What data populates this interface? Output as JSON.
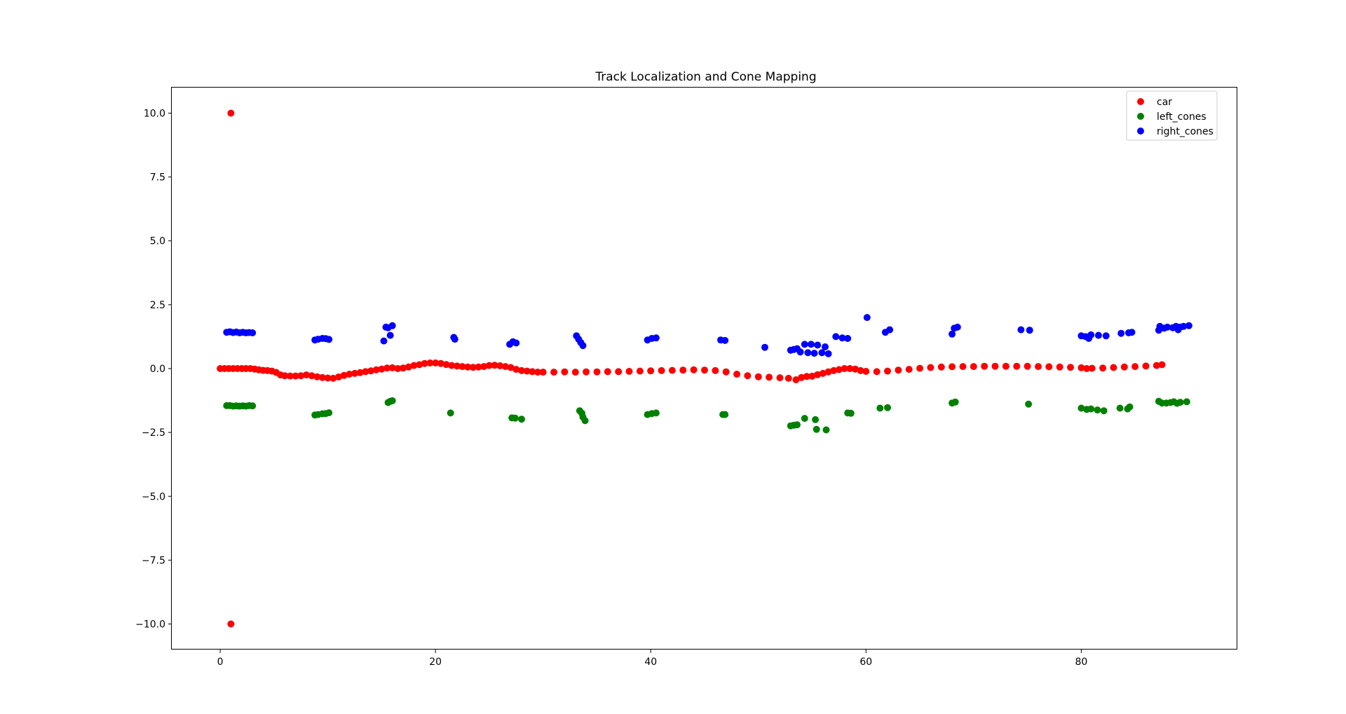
{
  "chart_data": {
    "type": "scatter",
    "title": "Track Localization and Cone Mapping",
    "xlabel": "",
    "ylabel": "",
    "xlim": [
      -4.5,
      94.5
    ],
    "ylim": [
      -11,
      11
    ],
    "x_ticks": [
      0,
      20,
      40,
      60,
      80
    ],
    "x_tick_labels": [
      "0",
      "20",
      "40",
      "60",
      "80"
    ],
    "y_ticks": [
      10,
      7.5,
      5,
      2.5,
      0,
      -2.5,
      -5,
      -7.5,
      -10
    ],
    "y_tick_labels": [
      "10.0",
      "7.5",
      "5.0",
      "2.5",
      "0.0",
      "−2.5",
      "−5.0",
      "−7.5",
      "−10.0"
    ],
    "grid": false,
    "legend_position": "top-right",
    "series": [
      {
        "name": "car",
        "color": "#ff0000",
        "points": [
          [
            1.0,
            10.0
          ],
          [
            1.0,
            -10.0
          ],
          [
            0.0,
            0.0
          ],
          [
            0.4,
            0.0
          ],
          [
            0.8,
            0.0
          ],
          [
            1.2,
            0.0
          ],
          [
            1.6,
            0.0
          ],
          [
            2.0,
            0.0
          ],
          [
            2.4,
            0.0
          ],
          [
            2.8,
            0.0
          ],
          [
            3.2,
            -0.02
          ],
          [
            3.6,
            -0.05
          ],
          [
            4.0,
            -0.07
          ],
          [
            4.4,
            -0.08
          ],
          [
            4.8,
            -0.1
          ],
          [
            5.2,
            -0.15
          ],
          [
            5.6,
            -0.25
          ],
          [
            6.0,
            -0.28
          ],
          [
            6.5,
            -0.29
          ],
          [
            7.0,
            -0.29
          ],
          [
            7.5,
            -0.28
          ],
          [
            8.0,
            -0.25
          ],
          [
            8.5,
            -0.28
          ],
          [
            9.0,
            -0.32
          ],
          [
            9.5,
            -0.35
          ],
          [
            10.0,
            -0.37
          ],
          [
            10.5,
            -0.38
          ],
          [
            11.0,
            -0.33
          ],
          [
            11.5,
            -0.27
          ],
          [
            12.0,
            -0.22
          ],
          [
            12.5,
            -0.19
          ],
          [
            13.0,
            -0.16
          ],
          [
            13.5,
            -0.12
          ],
          [
            14.0,
            -0.09
          ],
          [
            14.5,
            -0.05
          ],
          [
            15.0,
            -0.02
          ],
          [
            15.5,
            0.02
          ],
          [
            16.0,
            0.03
          ],
          [
            16.5,
            0.0
          ],
          [
            17.0,
            0.02
          ],
          [
            17.5,
            0.06
          ],
          [
            18.0,
            0.12
          ],
          [
            18.5,
            0.15
          ],
          [
            19.0,
            0.2
          ],
          [
            19.5,
            0.22
          ],
          [
            20.0,
            0.22
          ],
          [
            20.5,
            0.2
          ],
          [
            21.0,
            0.16
          ],
          [
            21.5,
            0.12
          ],
          [
            22.0,
            0.1
          ],
          [
            22.5,
            0.08
          ],
          [
            23.0,
            0.06
          ],
          [
            23.5,
            0.05
          ],
          [
            24.0,
            0.06
          ],
          [
            24.5,
            0.08
          ],
          [
            25.0,
            0.12
          ],
          [
            25.5,
            0.13
          ],
          [
            26.0,
            0.11
          ],
          [
            26.5,
            0.08
          ],
          [
            27.0,
            0.04
          ],
          [
            27.5,
            -0.03
          ],
          [
            28.0,
            -0.08
          ],
          [
            28.5,
            -0.1
          ],
          [
            29.0,
            -0.12
          ],
          [
            29.5,
            -0.14
          ],
          [
            30.0,
            -0.14
          ],
          [
            31.0,
            -0.14
          ],
          [
            32.0,
            -0.13
          ],
          [
            33.0,
            -0.14
          ],
          [
            34.0,
            -0.13
          ],
          [
            35.0,
            -0.13
          ],
          [
            36.0,
            -0.12
          ],
          [
            37.0,
            -0.12
          ],
          [
            38.0,
            -0.11
          ],
          [
            39.0,
            -0.1
          ],
          [
            40.0,
            -0.09
          ],
          [
            41.0,
            -0.08
          ],
          [
            42.0,
            -0.07
          ],
          [
            43.0,
            -0.06
          ],
          [
            44.0,
            -0.05
          ],
          [
            45.0,
            -0.06
          ],
          [
            46.0,
            -0.08
          ],
          [
            47.0,
            -0.13
          ],
          [
            48.0,
            -0.22
          ],
          [
            49.0,
            -0.28
          ],
          [
            50.0,
            -0.32
          ],
          [
            51.0,
            -0.34
          ],
          [
            52.0,
            -0.36
          ],
          [
            52.8,
            -0.38
          ],
          [
            53.5,
            -0.44
          ],
          [
            54.0,
            -0.35
          ],
          [
            54.5,
            -0.31
          ],
          [
            55.0,
            -0.3
          ],
          [
            55.5,
            -0.24
          ],
          [
            56.0,
            -0.19
          ],
          [
            56.5,
            -0.13
          ],
          [
            57.0,
            -0.08
          ],
          [
            57.5,
            -0.04
          ],
          [
            58.0,
            0.0
          ],
          [
            58.5,
            0.0
          ],
          [
            59.0,
            -0.02
          ],
          [
            59.5,
            -0.08
          ],
          [
            60.0,
            -0.11
          ],
          [
            61.0,
            -0.12
          ],
          [
            62.0,
            -0.1
          ],
          [
            63.0,
            -0.06
          ],
          [
            64.0,
            -0.03
          ],
          [
            65.0,
            0.01
          ],
          [
            66.0,
            0.04
          ],
          [
            67.0,
            0.06
          ],
          [
            68.0,
            0.07
          ],
          [
            69.0,
            0.08
          ],
          [
            70.0,
            0.08
          ],
          [
            71.0,
            0.09
          ],
          [
            72.0,
            0.09
          ],
          [
            73.0,
            0.09
          ],
          [
            74.0,
            0.09
          ],
          [
            75.0,
            0.09
          ],
          [
            76.0,
            0.08
          ],
          [
            77.0,
            0.07
          ],
          [
            78.0,
            0.06
          ],
          [
            79.0,
            0.05
          ],
          [
            80.0,
            0.03
          ],
          [
            80.5,
            0.0
          ],
          [
            81.0,
            0.01
          ],
          [
            82.0,
            0.02
          ],
          [
            83.0,
            0.04
          ],
          [
            84.0,
            0.06
          ],
          [
            85.0,
            0.08
          ],
          [
            86.0,
            0.1
          ],
          [
            87.0,
            0.12
          ],
          [
            87.5,
            0.15
          ]
        ]
      },
      {
        "name": "left_cones",
        "color": "#008000",
        "points": [
          [
            0.6,
            -1.45
          ],
          [
            0.9,
            -1.45
          ],
          [
            1.2,
            -1.47
          ],
          [
            1.5,
            -1.46
          ],
          [
            1.8,
            -1.47
          ],
          [
            2.1,
            -1.46
          ],
          [
            2.4,
            -1.47
          ],
          [
            2.7,
            -1.45
          ],
          [
            3.0,
            -1.46
          ],
          [
            8.8,
            -1.82
          ],
          [
            9.1,
            -1.8
          ],
          [
            9.5,
            -1.77
          ],
          [
            9.8,
            -1.76
          ],
          [
            10.1,
            -1.73
          ],
          [
            15.6,
            -1.33
          ],
          [
            15.8,
            -1.28
          ],
          [
            16.0,
            -1.26
          ],
          [
            21.4,
            -1.74
          ],
          [
            27.1,
            -1.93
          ],
          [
            27.4,
            -1.94
          ],
          [
            28.0,
            -1.98
          ],
          [
            33.4,
            -1.65
          ],
          [
            33.6,
            -1.75
          ],
          [
            33.7,
            -1.9
          ],
          [
            33.9,
            -2.04
          ],
          [
            39.7,
            -1.8
          ],
          [
            40.1,
            -1.76
          ],
          [
            40.5,
            -1.74
          ],
          [
            46.7,
            -1.8
          ],
          [
            46.9,
            -1.8
          ],
          [
            53.0,
            -2.24
          ],
          [
            53.3,
            -2.22
          ],
          [
            53.6,
            -2.2
          ],
          [
            54.3,
            -1.95
          ],
          [
            55.3,
            -2.0
          ],
          [
            55.4,
            -2.38
          ],
          [
            56.3,
            -2.4
          ],
          [
            58.3,
            -1.74
          ],
          [
            58.6,
            -1.75
          ],
          [
            61.3,
            -1.55
          ],
          [
            62.0,
            -1.53
          ],
          [
            68.0,
            -1.35
          ],
          [
            68.3,
            -1.31
          ],
          [
            75.1,
            -1.39
          ],
          [
            80.0,
            -1.55
          ],
          [
            80.5,
            -1.6
          ],
          [
            80.9,
            -1.58
          ],
          [
            81.5,
            -1.62
          ],
          [
            82.1,
            -1.65
          ],
          [
            83.6,
            -1.55
          ],
          [
            84.3,
            -1.58
          ],
          [
            84.5,
            -1.5
          ],
          [
            87.2,
            -1.28
          ],
          [
            87.5,
            -1.35
          ],
          [
            87.9,
            -1.35
          ],
          [
            88.3,
            -1.33
          ],
          [
            88.6,
            -1.3
          ],
          [
            88.9,
            -1.36
          ],
          [
            89.2,
            -1.32
          ],
          [
            89.8,
            -1.3
          ]
        ]
      },
      {
        "name": "right_cones",
        "color": "#0000ff",
        "points": [
          [
            0.6,
            1.42
          ],
          [
            0.9,
            1.44
          ],
          [
            1.2,
            1.41
          ],
          [
            1.5,
            1.43
          ],
          [
            1.8,
            1.4
          ],
          [
            2.1,
            1.42
          ],
          [
            2.4,
            1.4
          ],
          [
            2.7,
            1.41
          ],
          [
            3.0,
            1.4
          ],
          [
            8.8,
            1.12
          ],
          [
            9.1,
            1.15
          ],
          [
            9.5,
            1.18
          ],
          [
            9.8,
            1.17
          ],
          [
            10.1,
            1.14
          ],
          [
            15.2,
            1.08
          ],
          [
            15.4,
            1.62
          ],
          [
            15.6,
            1.6
          ],
          [
            15.8,
            1.3
          ],
          [
            16.0,
            1.68
          ],
          [
            21.7,
            1.22
          ],
          [
            21.8,
            1.15
          ],
          [
            26.9,
            0.95
          ],
          [
            27.2,
            1.05
          ],
          [
            27.5,
            1.0
          ],
          [
            33.1,
            1.28
          ],
          [
            33.3,
            1.15
          ],
          [
            33.5,
            1.02
          ],
          [
            33.7,
            0.9
          ],
          [
            39.7,
            1.12
          ],
          [
            40.1,
            1.18
          ],
          [
            40.5,
            1.2
          ],
          [
            46.5,
            1.12
          ],
          [
            46.9,
            1.1
          ],
          [
            50.6,
            0.83
          ],
          [
            53.0,
            0.72
          ],
          [
            53.3,
            0.75
          ],
          [
            53.6,
            0.78
          ],
          [
            53.9,
            0.65
          ],
          [
            54.3,
            0.95
          ],
          [
            54.6,
            0.62
          ],
          [
            54.9,
            0.95
          ],
          [
            55.2,
            0.6
          ],
          [
            55.5,
            0.92
          ],
          [
            55.9,
            0.62
          ],
          [
            56.2,
            0.85
          ],
          [
            56.5,
            0.58
          ],
          [
            57.2,
            1.25
          ],
          [
            57.8,
            1.2
          ],
          [
            58.3,
            1.18
          ],
          [
            60.1,
            2.0
          ],
          [
            61.8,
            1.42
          ],
          [
            62.2,
            1.52
          ],
          [
            68.0,
            1.35
          ],
          [
            68.2,
            1.58
          ],
          [
            68.5,
            1.62
          ],
          [
            74.4,
            1.52
          ],
          [
            75.2,
            1.5
          ],
          [
            80.0,
            1.28
          ],
          [
            80.4,
            1.25
          ],
          [
            80.7,
            1.18
          ],
          [
            80.9,
            1.32
          ],
          [
            81.6,
            1.3
          ],
          [
            82.3,
            1.28
          ],
          [
            83.7,
            1.38
          ],
          [
            84.4,
            1.4
          ],
          [
            84.7,
            1.42
          ],
          [
            87.3,
            1.65
          ],
          [
            87.7,
            1.58
          ],
          [
            88.0,
            1.62
          ],
          [
            88.5,
            1.6
          ],
          [
            88.8,
            1.65
          ],
          [
            89.2,
            1.62
          ],
          [
            89.5,
            1.65
          ],
          [
            90.0,
            1.68
          ],
          [
            89.0,
            1.52
          ],
          [
            87.2,
            1.5
          ]
        ]
      }
    ]
  }
}
